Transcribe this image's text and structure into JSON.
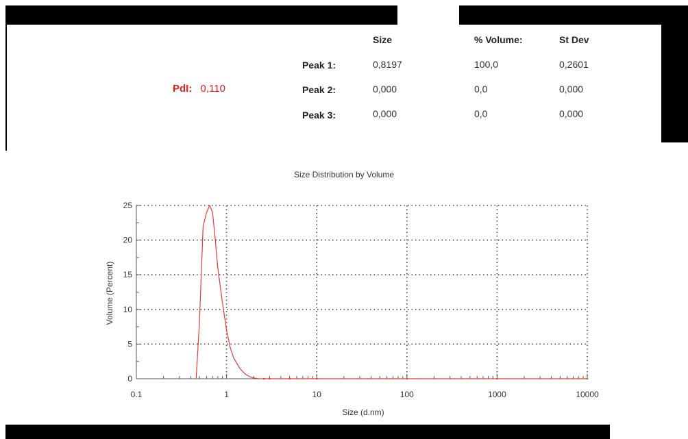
{
  "summary": {
    "pdi_label": "PdI:",
    "pdi_value": "0,110",
    "headers": [
      "Size",
      "% Volume:",
      "St Dev"
    ],
    "peaks": [
      {
        "label": "Peak 1:",
        "size": "0,8197",
        "volume": "100,0",
        "stdev": "0,2601"
      },
      {
        "label": "Peak 2:",
        "size": "0,000",
        "volume": "0,0",
        "stdev": "0,000"
      },
      {
        "label": "Peak 3:",
        "size": "0,000",
        "volume": "0,0",
        "stdev": "0,000"
      }
    ]
  },
  "colors": {
    "curve": "#e23b33",
    "pdi": "#e0201d",
    "grid": "#444444"
  },
  "chart_data": {
    "type": "line",
    "title": "Size Distribution by Volume",
    "xlabel": "Size (d.nm)",
    "ylabel": "Volume (Percent)",
    "xscale": "log",
    "xlim": [
      0.1,
      10000
    ],
    "ylim": [
      0,
      25
    ],
    "x_ticks": [
      "0.1",
      "1",
      "10",
      "100",
      "1000",
      "10000"
    ],
    "y_ticks": [
      "0",
      "5",
      "10",
      "15",
      "20",
      "25"
    ],
    "grid": true,
    "series": [
      {
        "x": [
          0.46,
          0.5,
          0.55,
          0.6,
          0.65,
          0.7,
          0.75,
          0.8,
          0.9,
          1.0,
          1.1,
          1.2,
          1.4,
          1.6,
          1.8,
          2.0,
          2.3,
          2.6,
          3.0,
          5,
          10,
          100,
          1000,
          10000
        ],
        "y": [
          0,
          8,
          22,
          24,
          25,
          24,
          20,
          16,
          11,
          7,
          4.5,
          3,
          1.5,
          0.7,
          0.3,
          0.1,
          0,
          0,
          0,
          0,
          0,
          0,
          0,
          0
        ]
      }
    ]
  }
}
